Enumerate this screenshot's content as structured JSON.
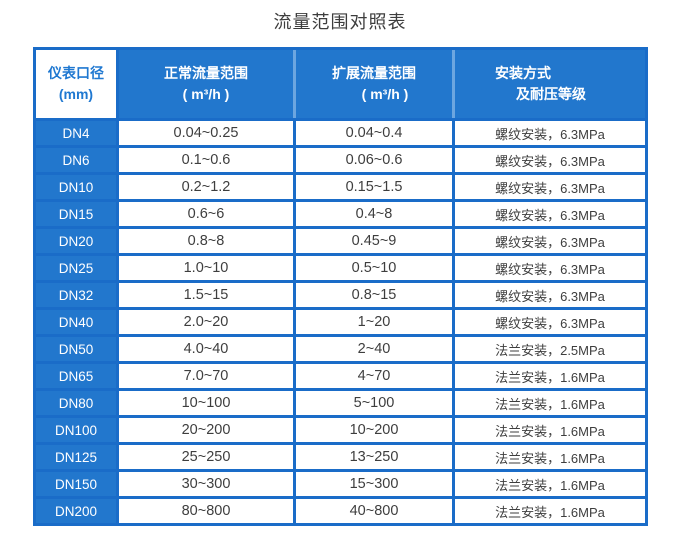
{
  "title": "流量范围对照表",
  "colors": {
    "header_blue": "#2277cd",
    "grid_blue": "#1a6cc8",
    "light_divider_blue": "#6ca6e0",
    "first_header_text_blue": "#1f78d1",
    "cell_text_gray": "#3e3e3e",
    "header_text": "#ffffff",
    "background": "#ffffff"
  },
  "table": {
    "headers": [
      {
        "lines": [
          "仪表口径",
          "(mm)"
        ]
      },
      {
        "lines": [
          "正常流量范围",
          "( m³/h )"
        ]
      },
      {
        "lines": [
          "扩展流量范围",
          "( m³/h )"
        ]
      },
      {
        "lines": [
          "安装方式",
          "及耐压等级"
        ]
      }
    ],
    "rows": [
      [
        "DN4",
        "0.04~0.25",
        "0.04~0.4",
        "螺纹安装，6.3MPa"
      ],
      [
        "DN6",
        "0.1~0.6",
        "0.06~0.6",
        "螺纹安装，6.3MPa"
      ],
      [
        "DN10",
        "0.2~1.2",
        "0.15~1.5",
        "螺纹安装，6.3MPa"
      ],
      [
        "DN15",
        "0.6~6",
        "0.4~8",
        "螺纹安装，6.3MPa"
      ],
      [
        "DN20",
        "0.8~8",
        "0.45~9",
        "螺纹安装，6.3MPa"
      ],
      [
        "DN25",
        "1.0~10",
        "0.5~10",
        "螺纹安装，6.3MPa"
      ],
      [
        "DN32",
        "1.5~15",
        "0.8~15",
        "螺纹安装，6.3MPa"
      ],
      [
        "DN40",
        "2.0~20",
        "1~20",
        "螺纹安装，6.3MPa"
      ],
      [
        "DN50",
        "4.0~40",
        "2~40",
        "法兰安装，2.5MPa"
      ],
      [
        "DN65",
        "7.0~70",
        "4~70",
        "法兰安装，1.6MPa"
      ],
      [
        "DN80",
        "10~100",
        "5~100",
        "法兰安装，1.6MPa"
      ],
      [
        "DN100",
        "20~200",
        "10~200",
        "法兰安装，1.6MPa"
      ],
      [
        "DN125",
        "25~250",
        "13~250",
        "法兰安装，1.6MPa"
      ],
      [
        "DN150",
        "30~300",
        "15~300",
        "法兰安装，1.6MPa"
      ],
      [
        "DN200",
        "80~800",
        "40~800",
        "法兰安装，1.6MPa"
      ]
    ]
  }
}
